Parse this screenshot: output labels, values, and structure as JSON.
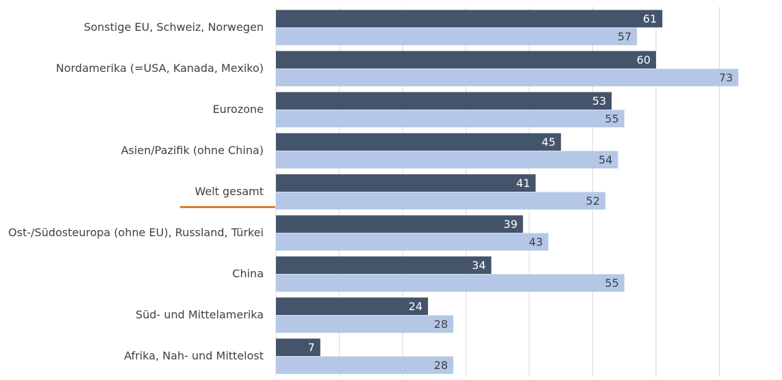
{
  "chart_data": {
    "type": "hbar",
    "categories": [
      "Sonstige EU, Schweiz, Norwegen",
      "Nordamerika (=USA, Kanada, Mexiko)",
      "Eurozone",
      "Asien/Pazifik (ohne China)",
      "Welt gesamt",
      "Ost-/Südosteuropa (ohne EU), Russland, Türkei",
      "China",
      "Süd- und Mittelamerika",
      "Afrika, Nah- und Mittelost"
    ],
    "series": [
      {
        "color": "#44546a",
        "values": [
          61,
          60,
          53,
          45,
          41,
          39,
          34,
          24,
          7
        ]
      },
      {
        "color": "#b4c7e7",
        "values": [
          57,
          73,
          55,
          54,
          52,
          43,
          55,
          28,
          28
        ]
      }
    ],
    "xlim": [
      0,
      80
    ],
    "xticks": [
      0,
      10,
      20,
      30,
      40,
      50,
      60,
      70
    ],
    "grid": true
  }
}
